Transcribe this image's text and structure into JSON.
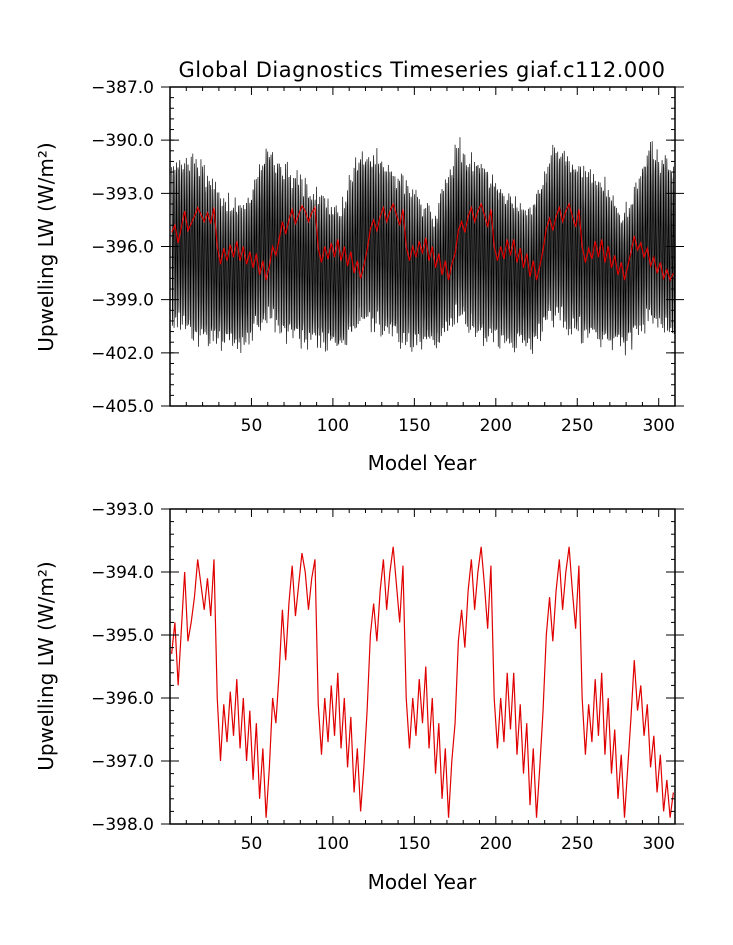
{
  "colors": {
    "monthly_series": "#000000",
    "annual_series": "#e00000",
    "background": "#ffffff"
  },
  "chart_data": [
    {
      "type": "line",
      "title": "Global Diagnostics Timeseries giaf.c112.000",
      "xlabel": "Model Year",
      "ylabel": "Upwelling LW (W/m²)",
      "xlim": [
        0,
        310
      ],
      "ylim": [
        -405.0,
        -387.0
      ],
      "x_ticks": [
        50,
        100,
        150,
        200,
        250,
        300
      ],
      "x_tick_labels": [
        "50",
        "100",
        "150",
        "200",
        "250",
        "300"
      ],
      "y_ticks": [
        -387.0,
        -390.0,
        -393.0,
        -396.0,
        -399.0,
        -402.0,
        -405.0
      ],
      "y_tick_labels": [
        "−387.0",
        "−390.0",
        "−393.0",
        "−396.0",
        "−399.0",
        "−402.0",
        "−405.0"
      ],
      "series": [
        {
          "kind": "monthly",
          "color": "#000000",
          "note_range": "dense monthly oscillation, envelope roughly -402 to -389.5",
          "envelope_high": [
            -391.0,
            -390.5,
            -392.8,
            -393.5,
            -390.0,
            -391.5,
            -392.5,
            -393.8,
            -390.0,
            -391.0,
            -392.5,
            -393.8,
            -390.0,
            -391.0,
            -392.5,
            -393.8,
            -390.0,
            -391.0,
            -392.0,
            -393.8,
            -390.0,
            -391.0
          ],
          "envelope_low": [
            -400.5,
            -401.5,
            -401.8,
            -402.0,
            -400.5,
            -401.5,
            -401.8,
            -402.0,
            -400.5,
            -401.5,
            -401.8,
            -402.0,
            -400.5,
            -401.5,
            -401.8,
            -402.0,
            -400.5,
            -401.5,
            -401.8,
            -402.0,
            -400.5,
            -401.5
          ]
        },
        {
          "kind": "annual",
          "color": "#e00000",
          "x": [
            1,
            3,
            5,
            7,
            9,
            11,
            13,
            15,
            17,
            19,
            21,
            23,
            25,
            27,
            29,
            31,
            33,
            35,
            37,
            39,
            41,
            43,
            45,
            47,
            49,
            51,
            53,
            55,
            57,
            59,
            61,
            63,
            65,
            67,
            69,
            71,
            73,
            75,
            77,
            79,
            81,
            83,
            85,
            87,
            89,
            91,
            93,
            95,
            97,
            99,
            101,
            103,
            105,
            107,
            109,
            111,
            113,
            115,
            117,
            119,
            121,
            123,
            125,
            127,
            129,
            131,
            133,
            135,
            137,
            139,
            141,
            143,
            145,
            147,
            149,
            151,
            153,
            155,
            157,
            159,
            161,
            163,
            165,
            167,
            169,
            171,
            173,
            175,
            177,
            179,
            181,
            183,
            185,
            187,
            189,
            191,
            193,
            195,
            197,
            199,
            201,
            203,
            205,
            207,
            209,
            211,
            213,
            215,
            217,
            219,
            221,
            223,
            225,
            227,
            229,
            231,
            233,
            235,
            237,
            239,
            241,
            243,
            245,
            247,
            249,
            251,
            253,
            255,
            257,
            259,
            261,
            263,
            265,
            267,
            269,
            271,
            273,
            275,
            277,
            279,
            281,
            283,
            285,
            287,
            289,
            291,
            293,
            295,
            297,
            299,
            301,
            303,
            305,
            307,
            309
          ],
          "y": [
            -395.2,
            -394.8,
            -395.8,
            -394.9,
            -394.0,
            -395.1,
            -394.7,
            -394.3,
            -393.8,
            -394.2,
            -394.6,
            -394.1,
            -394.7,
            -393.8,
            -396.0,
            -397.0,
            -396.1,
            -396.8,
            -395.9,
            -396.6,
            -395.7,
            -396.8,
            -396.0,
            -397.0,
            -396.3,
            -397.2,
            -396.4,
            -397.6,
            -396.8,
            -397.9,
            -397.1,
            -396.0,
            -396.5,
            -395.6,
            -394.6,
            -395.3,
            -394.5,
            -393.9,
            -394.7,
            -394.2,
            -393.7,
            -394.0,
            -394.6,
            -394.1,
            -393.8,
            -396.1,
            -396.9,
            -396.0,
            -396.7,
            -395.8,
            -396.6,
            -395.6,
            -396.8,
            -396.0,
            -397.1,
            -396.3,
            -397.5,
            -396.8,
            -397.8,
            -397.1,
            -396.2,
            -395.0,
            -394.5,
            -395.1,
            -394.3,
            -393.8,
            -394.6,
            -394.0,
            -393.6,
            -394.2,
            -394.8,
            -393.9,
            -396.0,
            -396.8,
            -396.0,
            -396.6,
            -395.7,
            -396.4,
            -395.5,
            -396.8,
            -396.0,
            -397.2,
            -396.4,
            -397.6,
            -396.8,
            -397.9,
            -397.0,
            -396.4,
            -395.1,
            -394.6,
            -395.2,
            -394.3,
            -393.8,
            -394.6,
            -394.0,
            -393.6,
            -394.2,
            -394.9,
            -393.9,
            -396.0,
            -396.8,
            -396.0,
            -396.7,
            -395.6,
            -396.5,
            -395.6,
            -396.9,
            -396.1,
            -397.2,
            -396.4,
            -397.7,
            -396.8,
            -397.9,
            -397.1,
            -396.2,
            -395.0,
            -394.4,
            -395.1,
            -394.3,
            -393.8,
            -394.6,
            -394.0,
            -393.6,
            -394.3,
            -394.9,
            -393.9,
            -396.0,
            -396.9,
            -396.1,
            -396.7,
            -395.7,
            -396.6,
            -395.6,
            -396.9,
            -396.0,
            -397.2,
            -396.5,
            -397.6,
            -396.9,
            -397.9,
            -397.1,
            -396.3,
            -395.4,
            -396.2,
            -395.8,
            -396.6,
            -396.1,
            -397.1,
            -396.6,
            -397.5,
            -396.9,
            -397.8,
            -397.3,
            -397.9,
            -397.5
          ]
        }
      ]
    },
    {
      "type": "line",
      "title": "",
      "xlabel": "Model Year",
      "ylabel": "Upwelling LW (W/m²)",
      "xlim": [
        0,
        310
      ],
      "ylim": [
        -398.0,
        -393.0
      ],
      "x_ticks": [
        50,
        100,
        150,
        200,
        250,
        300
      ],
      "x_tick_labels": [
        "50",
        "100",
        "150",
        "200",
        "250",
        "300"
      ],
      "y_ticks": [
        -393.0,
        -394.0,
        -395.0,
        -396.0,
        -397.0,
        -398.0
      ],
      "y_tick_labels": [
        "−393.0",
        "−394.0",
        "−395.0",
        "−396.0",
        "−397.0",
        "−398.0"
      ],
      "series": [
        {
          "kind": "annual",
          "color": "#e00000",
          "x": [
            1,
            3,
            5,
            7,
            9,
            11,
            13,
            15,
            17,
            19,
            21,
            23,
            25,
            27,
            29,
            31,
            33,
            35,
            37,
            39,
            41,
            43,
            45,
            47,
            49,
            51,
            53,
            55,
            57,
            59,
            61,
            63,
            65,
            67,
            69,
            71,
            73,
            75,
            77,
            79,
            81,
            83,
            85,
            87,
            89,
            91,
            93,
            95,
            97,
            99,
            101,
            103,
            105,
            107,
            109,
            111,
            113,
            115,
            117,
            119,
            121,
            123,
            125,
            127,
            129,
            131,
            133,
            135,
            137,
            139,
            141,
            143,
            145,
            147,
            149,
            151,
            153,
            155,
            157,
            159,
            161,
            163,
            165,
            167,
            169,
            171,
            173,
            175,
            177,
            179,
            181,
            183,
            185,
            187,
            189,
            191,
            193,
            195,
            197,
            199,
            201,
            203,
            205,
            207,
            209,
            211,
            213,
            215,
            217,
            219,
            221,
            223,
            225,
            227,
            229,
            231,
            233,
            235,
            237,
            239,
            241,
            243,
            245,
            247,
            249,
            251,
            253,
            255,
            257,
            259,
            261,
            263,
            265,
            267,
            269,
            271,
            273,
            275,
            277,
            279,
            281,
            283,
            285,
            287,
            289,
            291,
            293,
            295,
            297,
            299,
            301,
            303,
            305,
            307,
            309
          ],
          "y": [
            -395.3,
            -394.8,
            -395.8,
            -394.9,
            -394.0,
            -395.1,
            -394.8,
            -394.4,
            -393.8,
            -394.2,
            -394.6,
            -394.1,
            -394.7,
            -393.8,
            -396.0,
            -397.0,
            -396.1,
            -396.7,
            -395.9,
            -396.6,
            -395.7,
            -396.8,
            -396.0,
            -397.0,
            -396.2,
            -397.3,
            -396.4,
            -397.6,
            -396.8,
            -397.9,
            -397.1,
            -396.0,
            -396.4,
            -395.6,
            -394.6,
            -395.4,
            -394.5,
            -393.9,
            -394.7,
            -394.2,
            -393.7,
            -394.0,
            -394.6,
            -394.1,
            -393.8,
            -396.1,
            -396.9,
            -396.0,
            -396.7,
            -395.8,
            -396.6,
            -395.6,
            -396.8,
            -396.0,
            -397.1,
            -396.3,
            -397.5,
            -396.8,
            -397.8,
            -397.1,
            -396.2,
            -395.0,
            -394.5,
            -395.1,
            -394.3,
            -393.8,
            -394.6,
            -394.0,
            -393.6,
            -394.2,
            -394.8,
            -393.9,
            -396.0,
            -396.8,
            -396.0,
            -396.6,
            -395.7,
            -396.4,
            -395.5,
            -396.8,
            -396.0,
            -397.2,
            -396.4,
            -397.6,
            -396.8,
            -397.9,
            -397.0,
            -396.4,
            -395.1,
            -394.6,
            -395.2,
            -394.3,
            -393.8,
            -394.6,
            -394.0,
            -393.6,
            -394.2,
            -394.9,
            -393.9,
            -396.0,
            -396.8,
            -396.0,
            -396.7,
            -395.6,
            -396.5,
            -395.6,
            -396.9,
            -396.1,
            -397.2,
            -396.4,
            -397.7,
            -396.8,
            -397.9,
            -397.1,
            -396.2,
            -395.0,
            -394.4,
            -395.1,
            -394.3,
            -393.8,
            -394.6,
            -394.0,
            -393.6,
            -394.3,
            -394.9,
            -393.9,
            -396.0,
            -396.9,
            -396.1,
            -396.7,
            -395.7,
            -396.6,
            -395.6,
            -396.9,
            -396.0,
            -397.2,
            -396.5,
            -397.6,
            -396.9,
            -397.9,
            -397.1,
            -396.3,
            -395.4,
            -396.2,
            -395.8,
            -396.6,
            -396.1,
            -397.1,
            -396.6,
            -397.5,
            -396.9,
            -397.8,
            -397.3,
            -397.9,
            -397.5
          ]
        }
      ]
    }
  ]
}
